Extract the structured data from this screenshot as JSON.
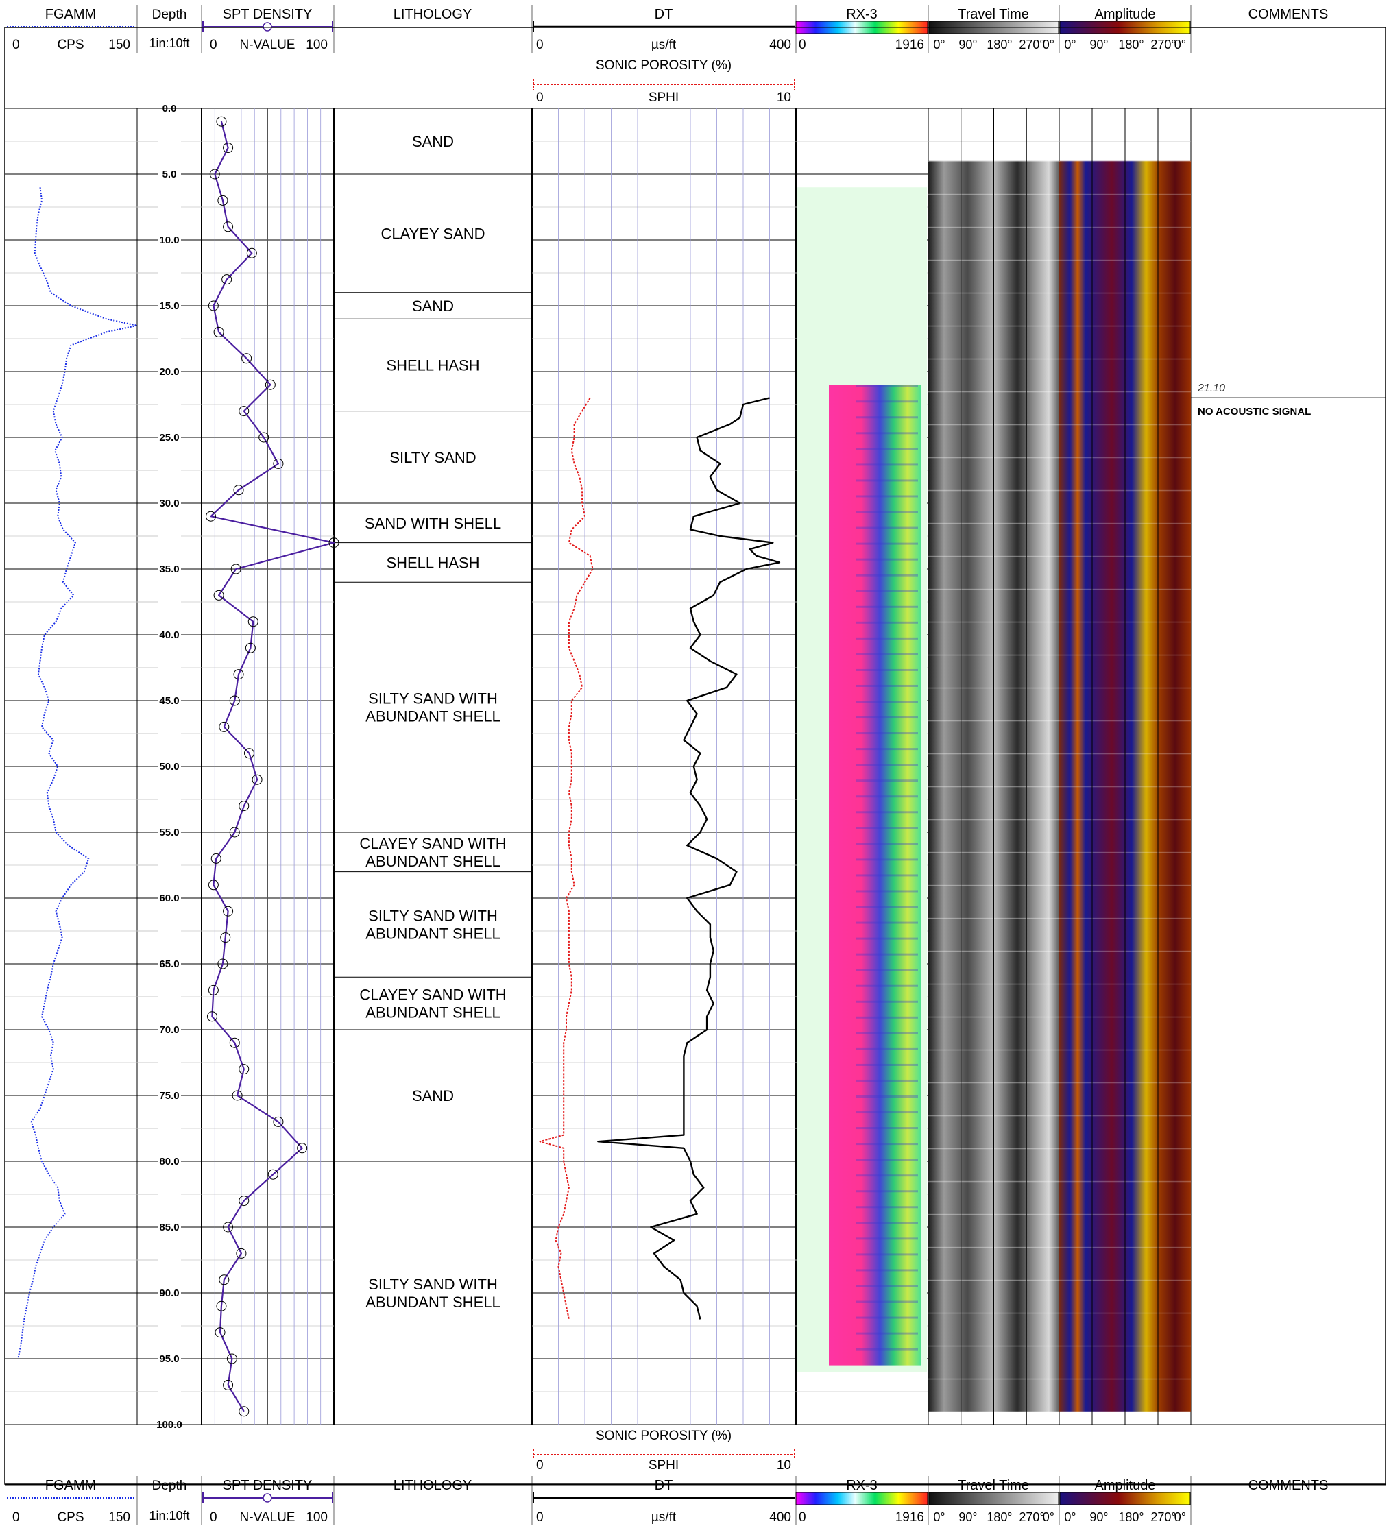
{
  "header": {
    "tracks": {
      "fgamm": {
        "title": "FGAMM",
        "unit": "CPS",
        "min": "0",
        "max": "150"
      },
      "depth": {
        "title": "Depth",
        "scale": "1in:10ft"
      },
      "spt": {
        "title": "SPT DENSITY",
        "unit": "N-VALUE",
        "min": "0",
        "max": "100"
      },
      "lithology": {
        "title": "LITHOLOGY"
      },
      "dt": {
        "title": "DT",
        "unit": "µs/ft",
        "min": "0",
        "max": "400"
      },
      "sphi": {
        "title": "SONIC POROSITY (%)",
        "unit": "SPHI",
        "min": "0",
        "max": "10"
      },
      "rx3": {
        "title": "RX-3",
        "min": "0",
        "max": "1916"
      },
      "travel_time": {
        "title": "Travel Time",
        "ticks": [
          "0°",
          "90°",
          "180°",
          "270°",
          "0°"
        ]
      },
      "amplitude": {
        "title": "Amplitude",
        "ticks": [
          "0°",
          "90°",
          "180°",
          "270°",
          "0°"
        ]
      },
      "comments": {
        "title": "COMMENTS"
      }
    }
  },
  "comments": [
    {
      "depth": 21.1,
      "depth_label": "21.10",
      "text": "NO ACOUSTIC SIGNAL"
    }
  ],
  "lithology": [
    {
      "top": 0,
      "bottom": 5,
      "label": [
        "SAND"
      ]
    },
    {
      "top": 5,
      "bottom": 14,
      "label": [
        "CLAYEY SAND"
      ]
    },
    {
      "top": 14,
      "bottom": 16,
      "label": [
        "SAND"
      ]
    },
    {
      "top": 16,
      "bottom": 23,
      "label": [
        "SHELL HASH"
      ]
    },
    {
      "top": 23,
      "bottom": 30,
      "label": [
        "SILTY SAND"
      ]
    },
    {
      "top": 30,
      "bottom": 33,
      "label": [
        "SAND WITH SHELL"
      ]
    },
    {
      "top": 33,
      "bottom": 36,
      "label": [
        "SHELL HASH"
      ]
    },
    {
      "top": 36,
      "bottom": 55,
      "label": [
        "SILTY SAND WITH",
        "ABUNDANT SHELL"
      ]
    },
    {
      "top": 55,
      "bottom": 58,
      "label": [
        "CLAYEY SAND WITH",
        "ABUNDANT SHELL"
      ]
    },
    {
      "top": 58,
      "bottom": 66,
      "label": [
        "SILTY SAND WITH",
        "ABUNDANT SHELL"
      ]
    },
    {
      "top": 66,
      "bottom": 70,
      "label": [
        "CLAYEY SAND WITH",
        "ABUNDANT SHELL"
      ]
    },
    {
      "top": 70,
      "bottom": 80,
      "label": [
        "SAND"
      ]
    },
    {
      "top": 80,
      "bottom": 100,
      "label": [
        "SILTY SAND WITH",
        "ABUNDANT SHELL"
      ]
    }
  ],
  "chart_data": {
    "type": "line",
    "depth_axis": {
      "label": "Depth",
      "range": [
        0,
        100
      ],
      "tick_step": 5,
      "ticks": [
        "0.0",
        "5.0",
        "10.0",
        "15.0",
        "20.0",
        "25.0",
        "30.0",
        "35.0",
        "40.0",
        "45.0",
        "50.0",
        "55.0",
        "60.0",
        "65.0",
        "70.0",
        "75.0",
        "80.0",
        "85.0",
        "90.0",
        "95.0",
        "100.0"
      ]
    },
    "series": [
      {
        "name": "FGAMM",
        "unit": "CPS",
        "range": [
          0,
          150
        ],
        "color": "#1a2ee6",
        "style": "dotted",
        "depth": [
          6,
          7,
          8,
          9,
          10,
          11,
          12,
          13,
          14,
          15,
          16,
          16.5,
          17,
          18,
          19,
          20,
          21,
          22,
          23,
          24,
          25,
          26,
          27,
          28,
          29,
          30,
          31,
          32,
          33,
          34,
          35,
          36,
          37,
          38,
          39,
          40,
          41,
          42,
          43,
          44,
          45,
          46,
          47,
          48,
          49,
          50,
          51,
          52,
          53,
          54,
          55,
          56,
          57,
          58,
          59,
          60,
          61,
          62,
          63,
          64,
          65,
          66,
          67,
          68,
          69,
          70,
          71,
          72,
          73,
          74,
          75,
          76,
          77,
          78,
          79,
          80,
          81,
          82,
          83,
          84,
          85,
          86,
          87,
          88,
          89,
          90,
          91,
          92,
          93,
          94,
          95
        ],
        "value": [
          40,
          42,
          38,
          36,
          35,
          34,
          40,
          47,
          52,
          75,
          115,
          150,
          115,
          75,
          70,
          68,
          65,
          60,
          55,
          58,
          65,
          57,
          62,
          64,
          58,
          62,
          60,
          66,
          80,
          75,
          70,
          66,
          78,
          64,
          58,
          45,
          42,
          40,
          38,
          45,
          50,
          45,
          42,
          55,
          50,
          60,
          55,
          48,
          50,
          55,
          58,
          72,
          95,
          90,
          75,
          65,
          58,
          62,
          65,
          60,
          55,
          52,
          48,
          45,
          42,
          50,
          55,
          52,
          55,
          50,
          45,
          40,
          30,
          35,
          38,
          42,
          50,
          60,
          62,
          68,
          55,
          45,
          40,
          35,
          32,
          28,
          25,
          22,
          20,
          18,
          15
        ]
      },
      {
        "name": "SPT DENSITY",
        "unit": "N-VALUE",
        "range": [
          0,
          100
        ],
        "color": "#4b1fa0",
        "style": "solid-markers",
        "depth": [
          1,
          3,
          5,
          7,
          9,
          11,
          13,
          15,
          17,
          19,
          21,
          23,
          25,
          27,
          29,
          31,
          33,
          35,
          37,
          39,
          41,
          43,
          45,
          47,
          49,
          51,
          53,
          55,
          57,
          59,
          61,
          63,
          65,
          67,
          69,
          71,
          73,
          75,
          77,
          79,
          81,
          83,
          85,
          87,
          89,
          91,
          93,
          95,
          97,
          99
        ],
        "value": [
          15,
          20,
          10,
          16,
          20,
          38,
          19,
          9,
          13,
          34,
          52,
          32,
          47,
          58,
          28,
          7,
          100,
          26,
          13,
          39,
          37,
          28,
          25,
          17,
          36,
          42,
          32,
          25,
          11,
          9,
          20,
          18,
          16,
          9,
          8,
          25,
          32,
          27,
          58,
          76,
          54,
          32,
          20,
          30,
          17,
          15,
          14,
          23,
          20,
          32
        ]
      },
      {
        "name": "DT",
        "unit": "µs/ft",
        "range": [
          0,
          400
        ],
        "color": "#000000",
        "style": "solid",
        "depth": [
          22,
          22.5,
          23.5,
          24,
          25,
          26,
          27,
          28,
          29,
          30,
          31,
          32,
          32.5,
          33,
          33.5,
          34,
          34.5,
          35,
          36,
          37,
          38,
          39,
          40,
          41,
          42,
          43,
          44,
          45,
          46,
          47,
          48,
          49,
          50,
          51,
          52,
          53,
          54,
          55,
          56,
          57,
          58,
          59,
          60,
          61,
          62,
          63,
          64,
          65,
          66,
          67,
          68,
          69,
          70,
          71,
          72,
          73,
          74,
          75,
          76,
          77,
          78,
          78.5,
          79,
          80,
          81,
          82,
          83,
          84,
          85,
          86,
          87,
          88,
          89,
          90,
          91,
          92
        ],
        "value": [
          360,
          320,
          315,
          300,
          250,
          255,
          285,
          270,
          280,
          315,
          245,
          240,
          285,
          365,
          330,
          340,
          375,
          325,
          285,
          275,
          240,
          245,
          255,
          240,
          270,
          310,
          295,
          235,
          250,
          240,
          230,
          255,
          245,
          250,
          240,
          255,
          265,
          255,
          235,
          280,
          310,
          300,
          235,
          250,
          270,
          270,
          275,
          270,
          270,
          265,
          275,
          265,
          265,
          235,
          230,
          230,
          230,
          230,
          230,
          230,
          230,
          100,
          230,
          240,
          245,
          260,
          240,
          250,
          180,
          215,
          185,
          200,
          225,
          230,
          250,
          255
        ]
      },
      {
        "name": "SONIC POROSITY (%)",
        "unit": "SPHI",
        "range": [
          0,
          10
        ],
        "color": "#e31a1a",
        "style": "dotted",
        "depth": [
          22,
          23,
          24,
          25,
          26,
          27,
          28,
          29,
          30,
          31,
          32,
          33,
          34,
          35,
          36,
          37,
          38,
          39,
          40,
          41,
          42,
          43,
          44,
          45,
          46,
          47,
          48,
          49,
          50,
          51,
          52,
          53,
          54,
          55,
          56,
          57,
          58,
          59,
          60,
          61,
          62,
          63,
          64,
          65,
          66,
          67,
          68,
          69,
          70,
          71,
          72,
          73,
          74,
          75,
          76,
          77,
          78,
          78.5,
          79,
          80,
          81,
          82,
          83,
          84,
          85,
          86,
          87,
          88,
          89,
          90,
          91,
          92
        ],
        "value": [
          2.2,
          1.9,
          1.6,
          1.6,
          1.5,
          1.6,
          1.8,
          1.9,
          1.9,
          2.0,
          1.5,
          1.4,
          2.2,
          2.3,
          2.0,
          1.7,
          1.6,
          1.4,
          1.4,
          1.4,
          1.6,
          1.8,
          1.9,
          1.5,
          1.5,
          1.4,
          1.4,
          1.5,
          1.5,
          1.5,
          1.4,
          1.5,
          1.5,
          1.4,
          1.4,
          1.5,
          1.5,
          1.6,
          1.3,
          1.4,
          1.4,
          1.4,
          1.4,
          1.4,
          1.5,
          1.5,
          1.4,
          1.3,
          1.3,
          1.2,
          1.2,
          1.2,
          1.2,
          1.2,
          1.2,
          1.2,
          1.2,
          0.3,
          1.2,
          1.2,
          1.3,
          1.4,
          1.3,
          1.2,
          1.0,
          0.9,
          1.1,
          1.0,
          1.1,
          1.2,
          1.3,
          1.4
        ]
      }
    ]
  }
}
